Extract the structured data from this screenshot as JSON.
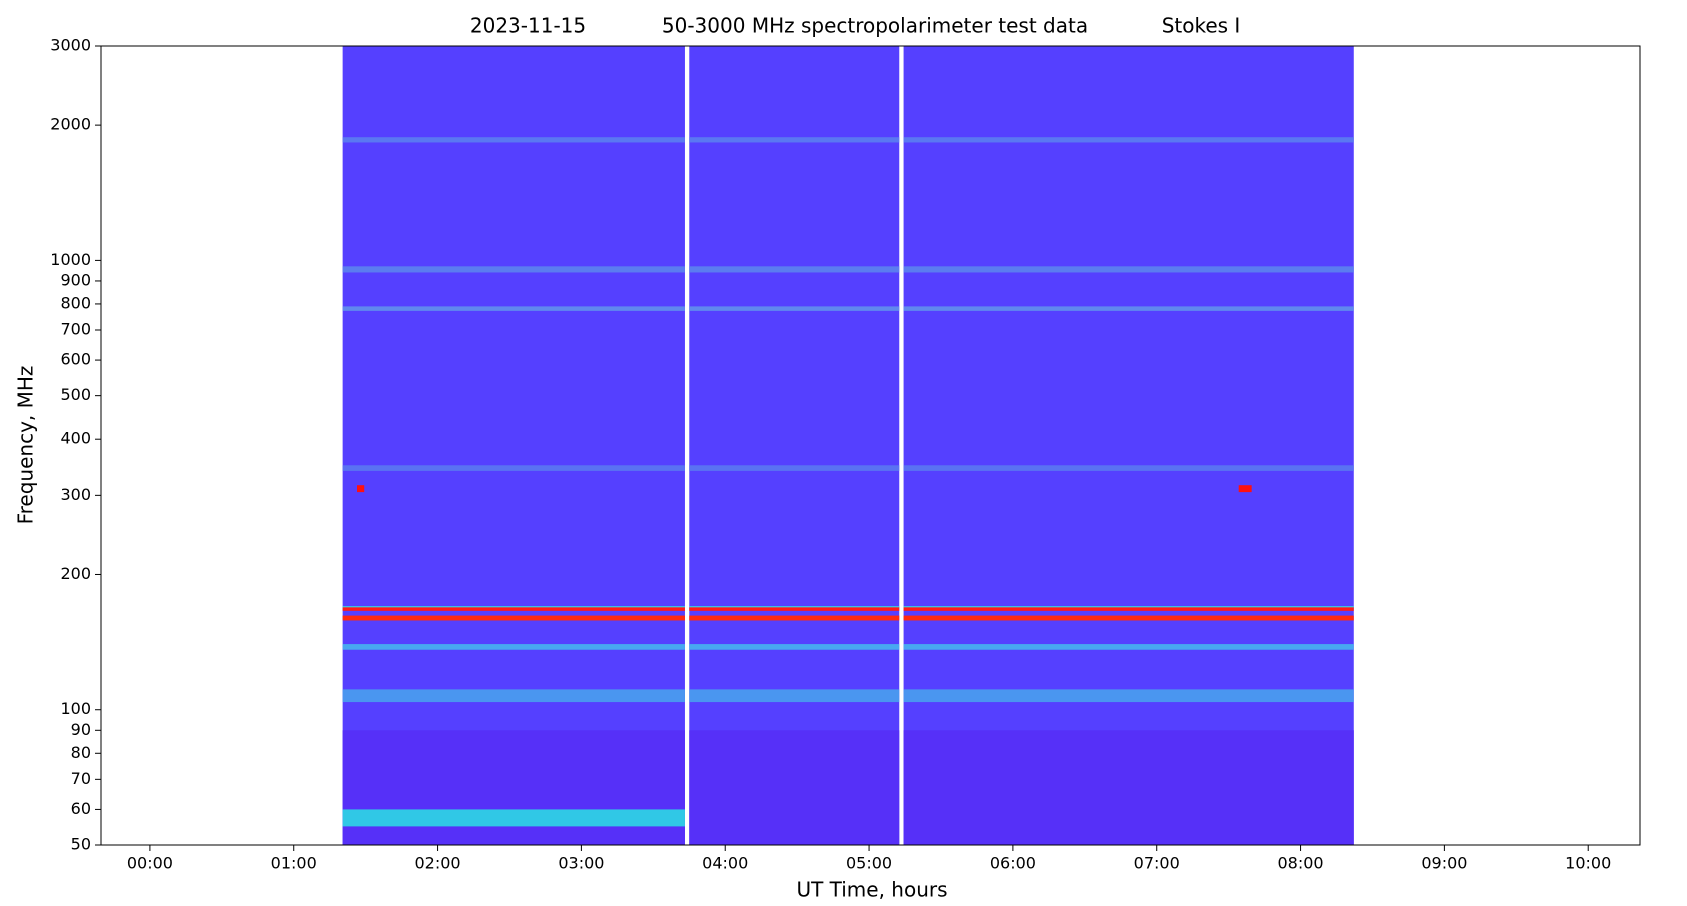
{
  "chart_data": {
    "type": "spectrogram",
    "title_parts": [
      "2023-11-15",
      "50-3000 MHz spectropolarimeter test data",
      "Stokes I"
    ],
    "x_label": "UT Time, hours",
    "y_label": "Frequency, MHz",
    "xlim": [
      -0.34,
      10.36
    ],
    "ylim": [
      50,
      3000
    ],
    "y_scale": "log",
    "xticks": [
      {
        "value": 0,
        "label": "00:00"
      },
      {
        "value": 1,
        "label": "01:00"
      },
      {
        "value": 2,
        "label": "02:00"
      },
      {
        "value": 3,
        "label": "03:00"
      },
      {
        "value": 4,
        "label": "04:00"
      },
      {
        "value": 5,
        "label": "05:00"
      },
      {
        "value": 6,
        "label": "06:00"
      },
      {
        "value": 7,
        "label": "07:00"
      },
      {
        "value": 8,
        "label": "08:00"
      },
      {
        "value": 9,
        "label": "09:00"
      },
      {
        "value": 10,
        "label": "10:00"
      }
    ],
    "yticks": [
      50,
      60,
      70,
      80,
      90,
      100,
      200,
      300,
      400,
      500,
      600,
      700,
      800,
      900,
      1000,
      2000,
      3000
    ],
    "background_color": "#5540ff",
    "time_ranges": [
      [
        1.34,
        3.72
      ],
      [
        3.75,
        5.21
      ],
      [
        5.24,
        8.37
      ]
    ],
    "bands": [
      {
        "x": [
          1.34,
          8.37
        ],
        "y": [
          50,
          90
        ],
        "color": "#5630f8"
      },
      {
        "x": [
          1.34,
          8.37
        ],
        "y": [
          1830,
          1880
        ],
        "color": "#5a78f2"
      },
      {
        "x": [
          1.34,
          8.37
        ],
        "y": [
          940,
          970
        ],
        "color": "#5b7cf0"
      },
      {
        "x": [
          1.34,
          8.37
        ],
        "y": [
          772,
          790
        ],
        "color": "#6088ee"
      },
      {
        "x": [
          1.34,
          8.37
        ],
        "y": [
          340,
          350
        ],
        "color": "#5a72f2"
      },
      {
        "x": [
          1.34,
          8.37
        ],
        "y": [
          104,
          111
        ],
        "color": "#4a96f0"
      },
      {
        "x": [
          1.34,
          8.37
        ],
        "y": [
          136,
          140
        ],
        "color": "#48a8f0"
      },
      {
        "x": [
          1.34,
          3.72
        ],
        "y": [
          55,
          60
        ],
        "color": "#30c8e6"
      },
      {
        "x": [
          1.34,
          8.37
        ],
        "y": [
          167,
          170
        ],
        "color": "#38d8e0"
      },
      {
        "x": [
          1.34,
          8.37
        ],
        "y": [
          166,
          169
        ],
        "color": "#ff1a1a"
      },
      {
        "x": [
          1.34,
          8.37
        ],
        "y": [
          158,
          162
        ],
        "color": "#ff2a10"
      },
      {
        "x": [
          1.44,
          1.49
        ],
        "y": [
          305,
          316
        ],
        "color": "#ff1010"
      },
      {
        "x": [
          7.57,
          7.66
        ],
        "y": [
          305,
          316
        ],
        "color": "#ff1010"
      }
    ]
  }
}
